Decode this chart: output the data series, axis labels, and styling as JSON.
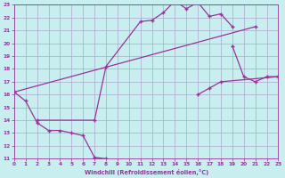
{
  "xlabel": "Windchill (Refroidissement éolien,°C)",
  "bg_color": "#c8eef0",
  "grid_color": "#aaaacc",
  "line_color": "#993399",
  "xmin": 0,
  "xmax": 23,
  "ymin": 11,
  "ymax": 23,
  "series": [
    {
      "segments": [
        {
          "x": [
            0,
            1,
            2,
            3,
            4,
            5,
            6,
            7,
            8
          ],
          "y": [
            16.2,
            15.5,
            13.8,
            13.2,
            13.2,
            13.0,
            12.8,
            11.1,
            11.0
          ]
        },
        {
          "x": [
            19,
            20,
            21,
            22,
            23
          ],
          "y": [
            19.8,
            17.4,
            17.0,
            17.4,
            17.4
          ]
        }
      ]
    },
    {
      "segments": [
        {
          "x": [
            2,
            7,
            8,
            11,
            12,
            13,
            14,
            15,
            16,
            17,
            18,
            19
          ],
          "y": [
            14.0,
            14.0,
            18.2,
            21.7,
            21.8,
            22.4,
            23.3,
            22.7,
            23.2,
            22.1,
            22.3,
            21.3
          ]
        }
      ]
    },
    {
      "segments": [
        {
          "x": [
            0,
            21
          ],
          "y": [
            16.2,
            21.3
          ]
        }
      ]
    },
    {
      "segments": [
        {
          "x": [
            16,
            17,
            18,
            23
          ],
          "y": [
            16.0,
            16.5,
            17.0,
            17.4
          ]
        }
      ]
    }
  ]
}
